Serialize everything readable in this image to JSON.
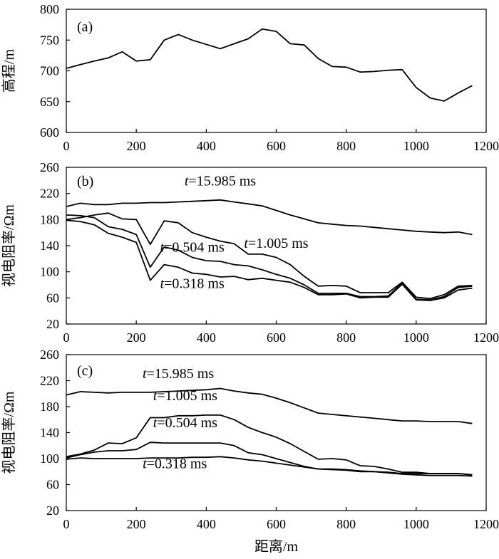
{
  "chart_data": [
    {
      "id": "a",
      "type": "line",
      "panel_label": "(a)",
      "xlabel": "",
      "ylabel": "高程/m",
      "xlim": [
        0,
        1200
      ],
      "ylim": [
        600,
        800
      ],
      "xticks": [
        0,
        200,
        400,
        600,
        800,
        1000,
        1200
      ],
      "yticks": [
        600,
        650,
        700,
        750,
        800
      ],
      "series": [
        {
          "name": "elevation",
          "label": "",
          "x": [
            0,
            40,
            80,
            120,
            160,
            200,
            240,
            280,
            320,
            360,
            400,
            440,
            480,
            520,
            560,
            600,
            640,
            680,
            720,
            760,
            800,
            840,
            880,
            920,
            960,
            1000,
            1040,
            1080,
            1120,
            1160
          ],
          "y": [
            704,
            710,
            716,
            721,
            731,
            716,
            718,
            750,
            759,
            750,
            743,
            736,
            744,
            752,
            768,
            764,
            744,
            742,
            720,
            707,
            706,
            698,
            699,
            701,
            702,
            673,
            656,
            651,
            664,
            676
          ]
        }
      ]
    },
    {
      "id": "b",
      "type": "line",
      "panel_label": "(b)",
      "xlabel": "",
      "ylabel": "视电阻率/Ωm",
      "xlim": [
        0,
        1200
      ],
      "ylim": [
        20,
        260
      ],
      "xticks": [
        0,
        200,
        400,
        600,
        800,
        1000,
        1200
      ],
      "yticks": [
        20,
        60,
        100,
        140,
        180,
        220,
        260
      ],
      "series": [
        {
          "name": "t=15.985 ms",
          "label_prefix": "t",
          "label_value": "=15.985 ms",
          "x": [
            0,
            40,
            80,
            120,
            160,
            200,
            240,
            280,
            320,
            360,
            400,
            440,
            480,
            520,
            560,
            600,
            640,
            680,
            720,
            760,
            800,
            840,
            880,
            920,
            960,
            1000,
            1040,
            1080,
            1120,
            1160
          ],
          "y": [
            200,
            205,
            203,
            203,
            205,
            205,
            206,
            206,
            207,
            208,
            209,
            210,
            207,
            204,
            201,
            194,
            187,
            181,
            175,
            173,
            171,
            170,
            168,
            166,
            164,
            162,
            161,
            160,
            161,
            157
          ]
        },
        {
          "name": "t=1.005 ms",
          "label_prefix": "t",
          "label_value": "=1.005 ms",
          "x": [
            0,
            40,
            80,
            120,
            160,
            200,
            240,
            280,
            320,
            360,
            400,
            440,
            480,
            520,
            560,
            600,
            640,
            680,
            720,
            760,
            800,
            840,
            880,
            920,
            960,
            1000,
            1040,
            1080,
            1120,
            1160
          ],
          "y": [
            180,
            183,
            187,
            190,
            181,
            180,
            142,
            178,
            175,
            160,
            153,
            147,
            143,
            127,
            127,
            122,
            111,
            93,
            78,
            79,
            78,
            68,
            68,
            68,
            84,
            61,
            59,
            65,
            78,
            79
          ]
        },
        {
          "name": "t=0.504 ms",
          "label_prefix": "t",
          "label_value": "=0.504 ms",
          "x": [
            0,
            40,
            80,
            120,
            160,
            200,
            240,
            280,
            320,
            360,
            400,
            440,
            480,
            520,
            560,
            600,
            640,
            680,
            720,
            760,
            800,
            840,
            880,
            920,
            960,
            1000,
            1040,
            1080,
            1120,
            1160
          ],
          "y": [
            187,
            186,
            183,
            169,
            165,
            157,
            107,
            138,
            133,
            122,
            117,
            116,
            111,
            109,
            103,
            96,
            90,
            80,
            67,
            67,
            67,
            62,
            62,
            63,
            83,
            58,
            57,
            62,
            76,
            78
          ]
        },
        {
          "name": "t=0.318 ms",
          "label_prefix": "t",
          "label_value": "=0.318 ms",
          "x": [
            0,
            40,
            80,
            120,
            160,
            200,
            240,
            280,
            320,
            360,
            400,
            440,
            480,
            520,
            560,
            600,
            640,
            680,
            720,
            760,
            800,
            840,
            880,
            920,
            960,
            1000,
            1040,
            1080,
            1120,
            1160
          ],
          "y": [
            179,
            177,
            172,
            159,
            153,
            145,
            87,
            111,
            107,
            98,
            96,
            92,
            93,
            88,
            90,
            87,
            84,
            76,
            65,
            65,
            66,
            60,
            61,
            61,
            81,
            57,
            56,
            60,
            72,
            75
          ]
        }
      ]
    },
    {
      "id": "c",
      "type": "line",
      "panel_label": "(c)",
      "xlabel": "距离/m",
      "ylabel": "视电阻率/Ωm",
      "xlim": [
        0,
        1200
      ],
      "ylim": [
        20,
        260
      ],
      "xticks": [
        0,
        200,
        400,
        600,
        800,
        1000,
        1200
      ],
      "yticks": [
        20,
        60,
        100,
        140,
        180,
        220,
        260
      ],
      "series": [
        {
          "name": "t=15.985 ms",
          "label_prefix": "t",
          "label_value": "=15.985 ms",
          "x": [
            0,
            40,
            80,
            120,
            160,
            200,
            240,
            280,
            320,
            360,
            400,
            440,
            480,
            520,
            560,
            600,
            640,
            680,
            720,
            760,
            800,
            840,
            880,
            920,
            960,
            1000,
            1040,
            1080,
            1120,
            1160
          ],
          "y": [
            198,
            203,
            202,
            201,
            202,
            202,
            202,
            203,
            204,
            205,
            206,
            208,
            204,
            201,
            199,
            193,
            186,
            178,
            170,
            168,
            166,
            164,
            162,
            160,
            158,
            158,
            157,
            157,
            157,
            154
          ]
        },
        {
          "name": "t=1.005 ms",
          "label_prefix": "t",
          "label_value": "=1.005 ms",
          "x": [
            0,
            40,
            80,
            120,
            160,
            200,
            240,
            280,
            320,
            360,
            400,
            440,
            480,
            520,
            560,
            600,
            640,
            680,
            720,
            760,
            800,
            840,
            880,
            920,
            960,
            1000,
            1040,
            1080,
            1120,
            1160
          ],
          "y": [
            103,
            107,
            113,
            124,
            123,
            132,
            163,
            163,
            166,
            166,
            167,
            167,
            160,
            148,
            140,
            133,
            123,
            111,
            99,
            100,
            98,
            89,
            88,
            84,
            79,
            79,
            77,
            77,
            77,
            75
          ]
        },
        {
          "name": "t=0.504 ms",
          "label_prefix": "t",
          "label_value": "=0.504 ms",
          "x": [
            0,
            40,
            80,
            120,
            160,
            200,
            240,
            280,
            320,
            360,
            400,
            440,
            480,
            520,
            560,
            600,
            640,
            680,
            720,
            760,
            800,
            840,
            880,
            920,
            960,
            1000,
            1040,
            1080,
            1120,
            1160
          ],
          "y": [
            101,
            106,
            110,
            112,
            112,
            114,
            125,
            124,
            124,
            124,
            124,
            124,
            120,
            109,
            106,
            100,
            94,
            88,
            84,
            83,
            82,
            80,
            80,
            79,
            77,
            77,
            77,
            77,
            77,
            75
          ]
        },
        {
          "name": "t=0.318 ms",
          "label_prefix": "t",
          "label_value": "=0.318 ms",
          "x": [
            0,
            40,
            80,
            120,
            160,
            200,
            240,
            280,
            320,
            360,
            400,
            440,
            480,
            520,
            560,
            600,
            640,
            680,
            720,
            760,
            800,
            840,
            880,
            920,
            960,
            1000,
            1040,
            1080,
            1120,
            1160
          ],
          "y": [
            99,
            101,
            100,
            100,
            100,
            100,
            101,
            101,
            101,
            102,
            102,
            103,
            101,
            98,
            96,
            93,
            90,
            87,
            84,
            84,
            83,
            81,
            80,
            78,
            76,
            75,
            74,
            74,
            74,
            73
          ]
        }
      ]
    }
  ]
}
